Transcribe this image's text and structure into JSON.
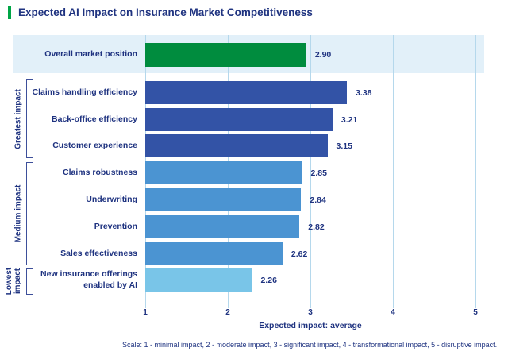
{
  "header": {
    "title": "Expected AI Impact on Insurance Market Competitiveness"
  },
  "chart_data": {
    "type": "bar",
    "orientation": "horizontal",
    "title": "Expected AI Impact on Insurance Market Competitiveness",
    "xlabel": "Expected impact: average",
    "xlim": [
      1,
      5
    ],
    "x_ticks": [
      "1",
      "2",
      "3",
      "4",
      "5"
    ],
    "grid": true,
    "legend_position": "none",
    "highlight": {
      "row": "Overall market position",
      "style": "light blue background band"
    },
    "rows": [
      {
        "label": "Overall market position",
        "value": 2.9,
        "display_value": "2.90",
        "color": "green",
        "group": null
      },
      {
        "label": "Claims handling efficiency",
        "value": 3.38,
        "display_value": "3.38",
        "color": "dark_blue",
        "group": "Greatest impact"
      },
      {
        "label": "Back-office efficiency",
        "value": 3.21,
        "display_value": "3.21",
        "color": "dark_blue",
        "group": "Greatest impact"
      },
      {
        "label": "Customer experience",
        "value": 3.15,
        "display_value": "3.15",
        "color": "dark_blue",
        "group": "Greatest impact"
      },
      {
        "label": "Claims robustness",
        "value": 2.85,
        "display_value": "2.85",
        "color": "mid_blue",
        "group": "Medium impact"
      },
      {
        "label": "Underwriting",
        "value": 2.84,
        "display_value": "2.84",
        "color": "mid_blue",
        "group": "Medium impact"
      },
      {
        "label": "Prevention",
        "value": 2.82,
        "display_value": "2.82",
        "color": "mid_blue",
        "group": "Medium impact"
      },
      {
        "label": "Sales effectiveness",
        "value": 2.62,
        "display_value": "2.62",
        "color": "mid_blue",
        "group": "Medium impact"
      },
      {
        "label": "New insurance offerings enabled by AI",
        "value": 2.26,
        "display_value": "2.26",
        "color": "light_blue",
        "group": "Lowest impact"
      }
    ],
    "groups": [
      {
        "name": "Greatest impact"
      },
      {
        "name": "Medium impact"
      },
      {
        "name": "Lowest impact"
      }
    ]
  },
  "footer": {
    "scale_note": "Scale: 1 - minimal impact, 2 - moderate impact, 3 - significant impact, 4 - transformational impact, 5 - disruptive impact."
  },
  "colors": {
    "navy": "#1f3380",
    "green": "#008c3e",
    "accent_green": "#00a546",
    "dark_blue": "#3353a6",
    "mid_blue": "#4b94d2",
    "light_blue": "#79c5e8",
    "band_bg": "#e2f0f9",
    "gridline": "#b5d8ec",
    "bracket": "#3d4f9a"
  }
}
